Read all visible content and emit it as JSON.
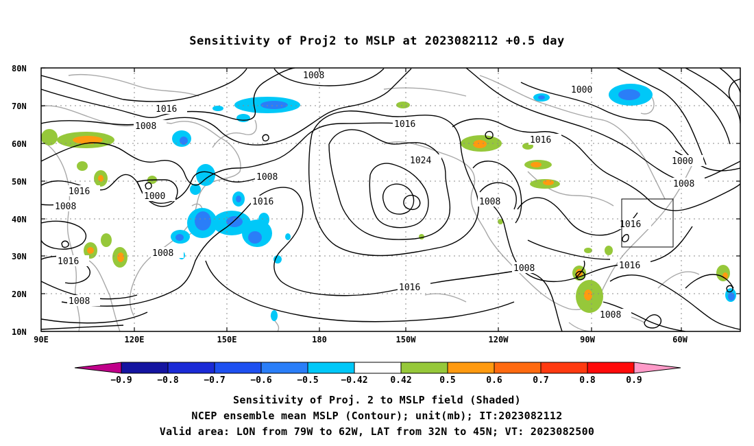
{
  "title": "Sensitivity of Proj2 to MSLP at 2023082112 +0.5 day",
  "map": {
    "lat_ticks": [
      "80N",
      "70N",
      "60N",
      "50N",
      "40N",
      "30N",
      "20N",
      "10N"
    ],
    "lon_ticks": [
      "90E",
      "120E",
      "150E",
      "180",
      "150W",
      "120W",
      "90W",
      "60W"
    ],
    "contour_labels": [
      {
        "text": "1008"
      },
      {
        "text": "1016"
      },
      {
        "text": "1008"
      },
      {
        "text": "1016"
      },
      {
        "text": "1000"
      },
      {
        "text": "1008"
      },
      {
        "text": "1016"
      },
      {
        "text": "1008"
      },
      {
        "text": "1016"
      },
      {
        "text": "1008"
      },
      {
        "text": "1008"
      },
      {
        "text": "1016"
      },
      {
        "text": "1024"
      },
      {
        "text": "1016"
      },
      {
        "text": "1008"
      },
      {
        "text": "1016"
      },
      {
        "text": "1000"
      },
      {
        "text": "1000"
      },
      {
        "text": "1008"
      },
      {
        "text": "1016"
      },
      {
        "text": "1016"
      },
      {
        "text": "1008"
      },
      {
        "text": "1008"
      }
    ],
    "valid_box": {
      "lon_from": "79W",
      "lon_to": "62W",
      "lat_from": "32N",
      "lat_to": "45N"
    }
  },
  "colorbar": {
    "levels": [
      "-0.9",
      "-0.8",
      "-0.7",
      "-0.6",
      "-0.5",
      "-0.42",
      "0.42",
      "0.5",
      "0.6",
      "0.7",
      "0.8",
      "0.9"
    ],
    "colors": {
      "below": "#c0008a",
      "bins": [
        "#1414a0",
        "#1a2ad6",
        "#1e50f0",
        "#2a7ef8",
        "#00c8f8",
        "#ffffff",
        "#96c83a",
        "#ff9a10",
        "#ff6a10",
        "#ff3a10",
        "#ff0a0a"
      ],
      "above": "#ff9ac8"
    }
  },
  "captions": {
    "line1": "Sensitivity of Proj. 2 to MSLP field (Shaded)",
    "line2": "NCEP ensemble mean MSLP (Contour); unit(mb); IT:2023082112",
    "line3": "Valid area: LON from 79W to 62W, LAT from 32N to 45N; VT: 2023082500"
  }
}
